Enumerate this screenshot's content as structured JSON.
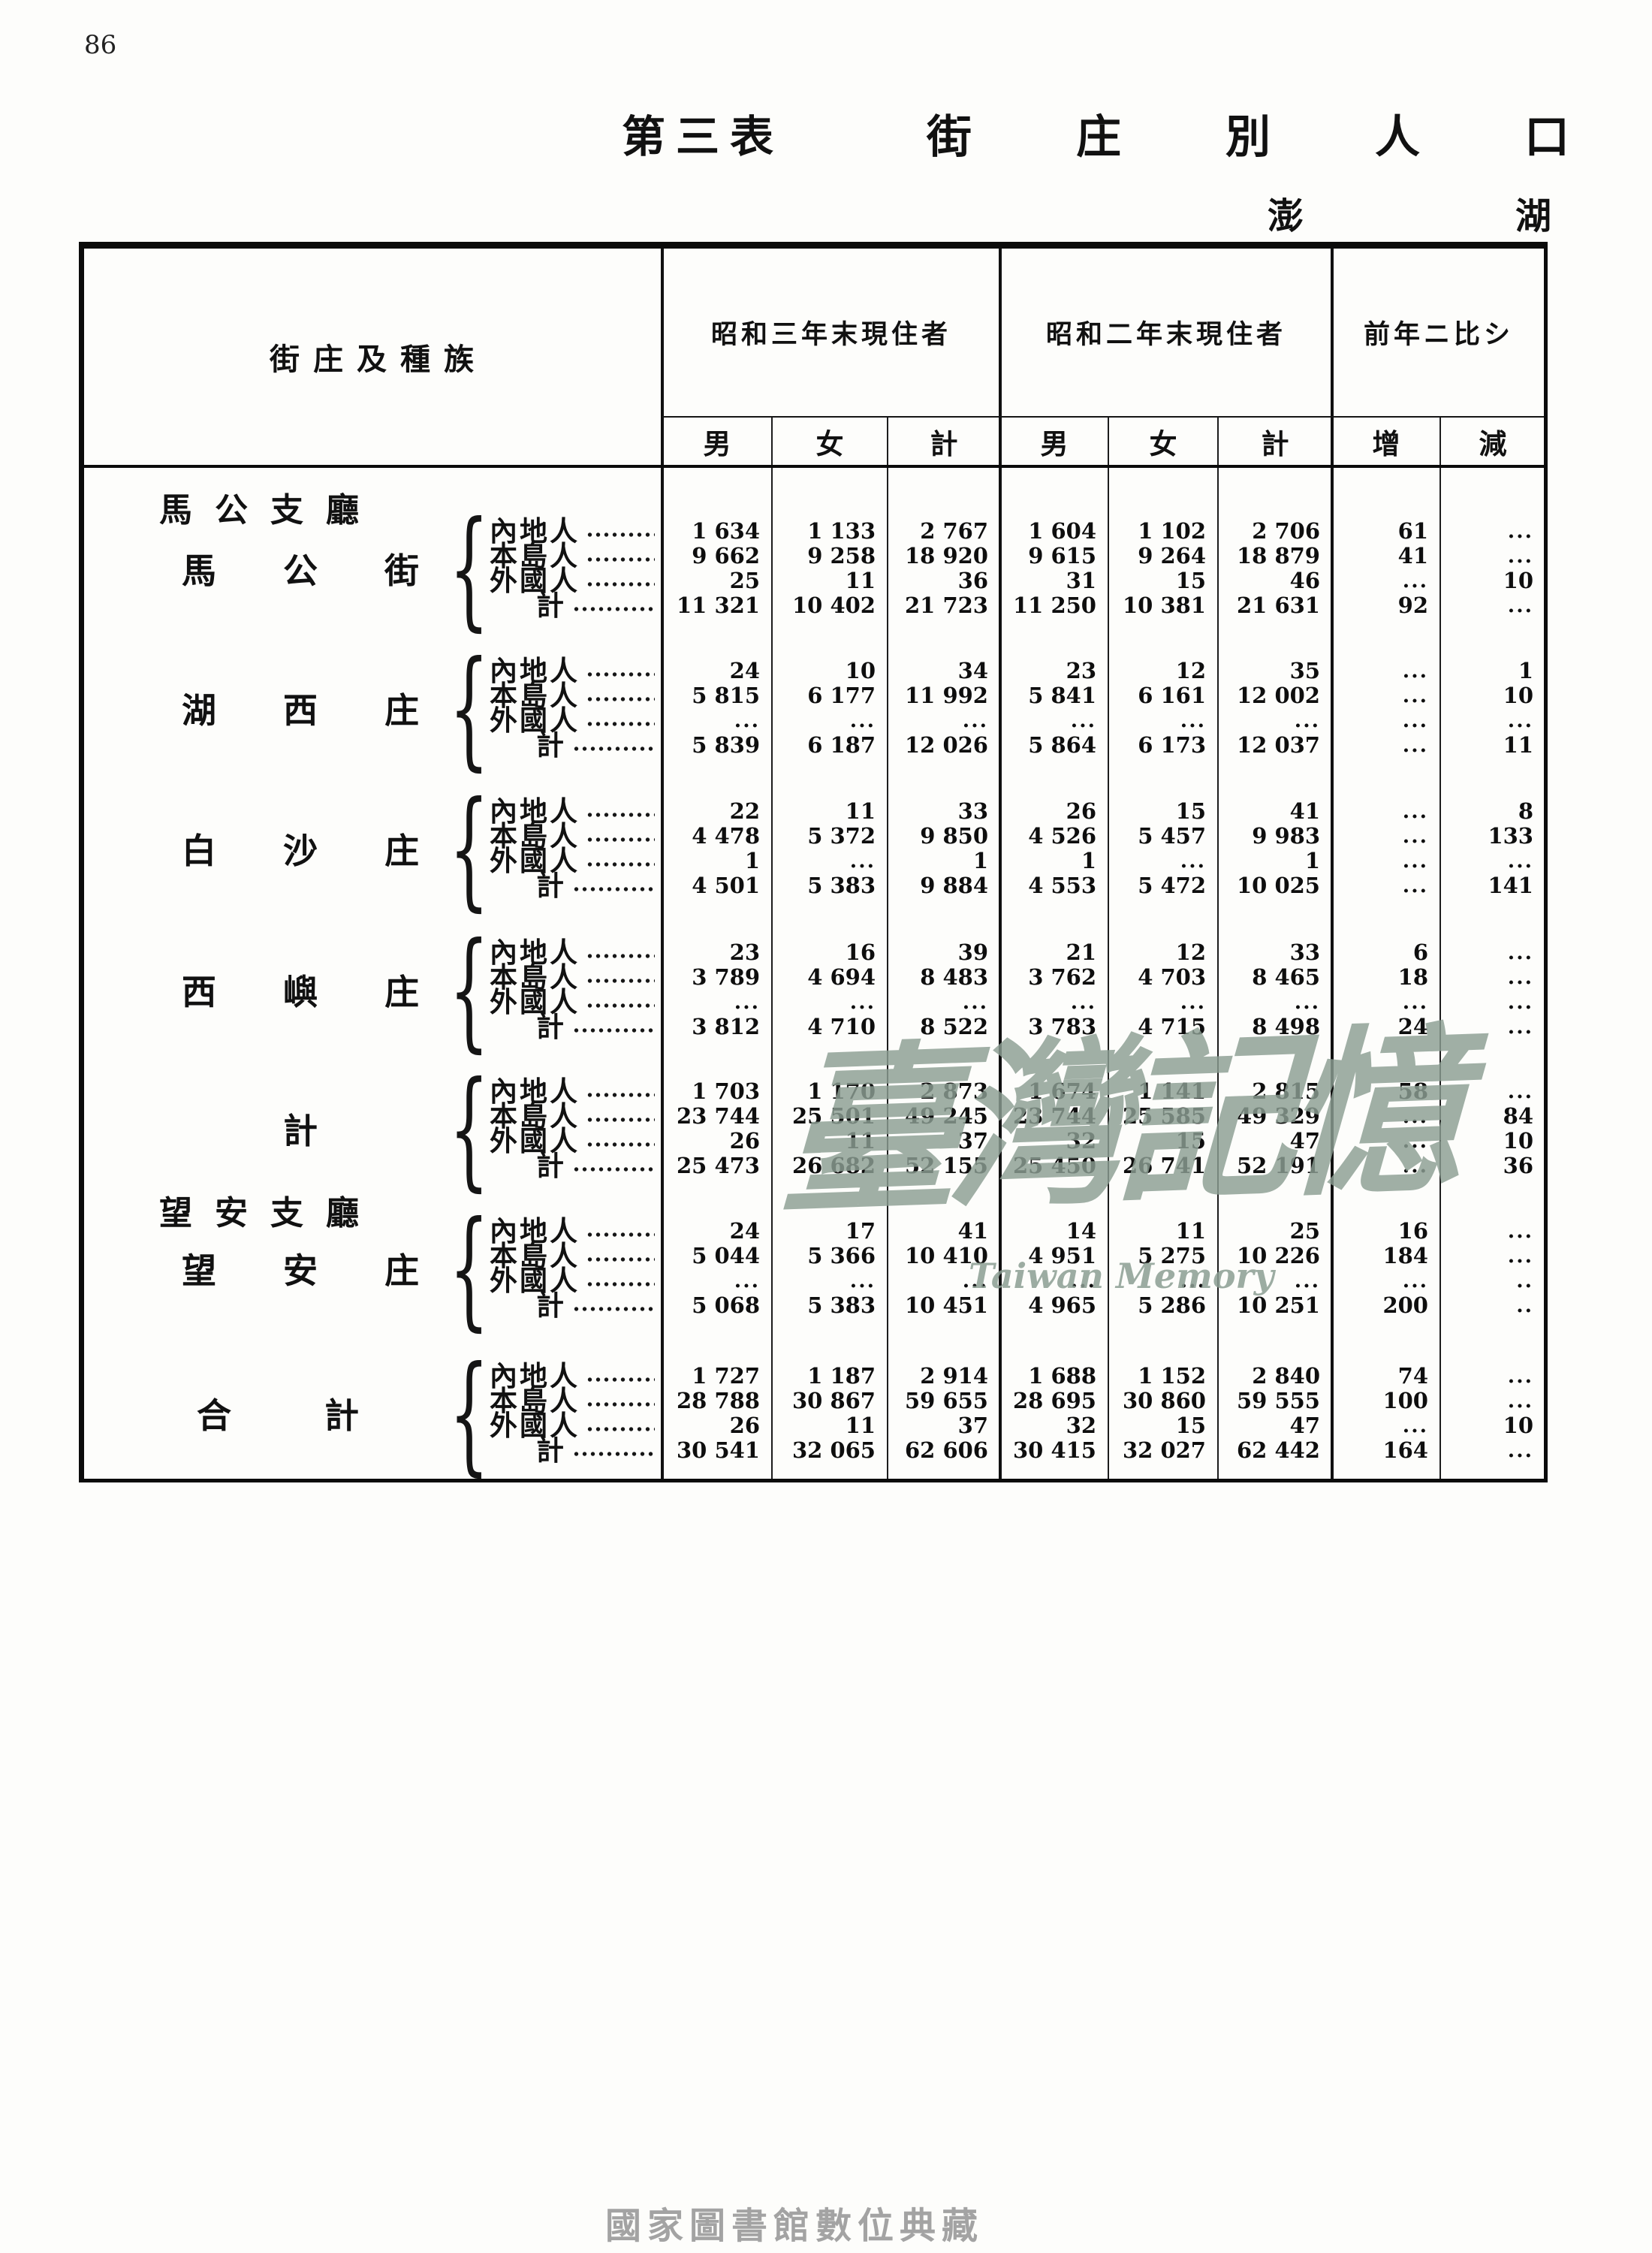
{
  "page": {
    "number": "86",
    "footer_caption": "國家圖書館數位典藏"
  },
  "title": {
    "table_no": "第三表",
    "chars": [
      "街",
      "庄",
      "別",
      "人",
      "口"
    ],
    "prefecture_chars": [
      "澎",
      "湖"
    ]
  },
  "watermark": {
    "cjk_chars": "臺灣記憶",
    "latin": "Taiwan Memory",
    "color": "#8c9e93"
  },
  "table": {
    "stub_header": "街庄及種族",
    "col_groups": [
      {
        "label": "昭和三年末現住者",
        "cols": [
          "男",
          "女",
          "計"
        ]
      },
      {
        "label": "昭和二年末現住者",
        "cols": [
          "男",
          "女",
          "計"
        ]
      },
      {
        "label": "前年ニ比シ",
        "cols": [
          "增",
          "減"
        ]
      }
    ],
    "sections": [
      {
        "type": "region",
        "label": "馬公支廳"
      },
      {
        "type": "group",
        "name": "馬公街",
        "rows": [
          {
            "race": "內地人",
            "values": [
              "1 634",
              "1 133",
              "2 767",
              "1 604",
              "1 102",
              "2 706",
              "61",
              "..."
            ]
          },
          {
            "race": "本島人",
            "values": [
              "9 662",
              "9 258",
              "18 920",
              "9 615",
              "9 264",
              "18 879",
              "41",
              "..."
            ]
          },
          {
            "race": "外國人",
            "values": [
              "25",
              "11",
              "36",
              "31",
              "15",
              "46",
              "...",
              "10"
            ]
          },
          {
            "race": "計",
            "values": [
              "11 321",
              "10 402",
              "21 723",
              "11 250",
              "10 381",
              "21 631",
              "92",
              "..."
            ]
          }
        ]
      },
      {
        "type": "group",
        "name": "湖西庄",
        "rows": [
          {
            "race": "內地人",
            "values": [
              "24",
              "10",
              "34",
              "23",
              "12",
              "35",
              "...",
              "1"
            ]
          },
          {
            "race": "本島人",
            "values": [
              "5 815",
              "6 177",
              "11 992",
              "5 841",
              "6 161",
              "12 002",
              "...",
              "10"
            ]
          },
          {
            "race": "外國人",
            "values": [
              "...",
              "...",
              "...",
              "...",
              "...",
              "...",
              "...",
              "..."
            ]
          },
          {
            "race": "計",
            "values": [
              "5 839",
              "6 187",
              "12 026",
              "5 864",
              "6 173",
              "12 037",
              "...",
              "11"
            ]
          }
        ]
      },
      {
        "type": "group",
        "name": "白沙庄",
        "rows": [
          {
            "race": "內地人",
            "values": [
              "22",
              "11",
              "33",
              "26",
              "15",
              "41",
              "...",
              "8"
            ]
          },
          {
            "race": "本島人",
            "values": [
              "4 478",
              "5 372",
              "9 850",
              "4 526",
              "5 457",
              "9 983",
              "...",
              "133"
            ]
          },
          {
            "race": "外國人",
            "values": [
              "1",
              "...",
              "1",
              "1",
              "...",
              "1",
              "...",
              "..."
            ]
          },
          {
            "race": "計",
            "values": [
              "4 501",
              "5 383",
              "9 884",
              "4 553",
              "5 472",
              "10 025",
              "...",
              "141"
            ]
          }
        ]
      },
      {
        "type": "group",
        "name": "西嶼庄",
        "rows": [
          {
            "race": "內地人",
            "values": [
              "23",
              "16",
              "39",
              "21",
              "12",
              "33",
              "6",
              "..."
            ]
          },
          {
            "race": "本島人",
            "values": [
              "3 789",
              "4 694",
              "8 483",
              "3 762",
              "4 703",
              "8 465",
              "18",
              "..."
            ]
          },
          {
            "race": "外國人",
            "values": [
              "...",
              "...",
              "...",
              "...",
              "...",
              "...",
              "...",
              "..."
            ]
          },
          {
            "race": "計",
            "values": [
              "3 812",
              "4 710",
              "8 522",
              "3 783",
              "4 715",
              "8 498",
              "24",
              "..."
            ]
          }
        ]
      },
      {
        "type": "group",
        "name": "計",
        "rows": [
          {
            "race": "內地人",
            "values": [
              "1 703",
              "1 170",
              "2 873",
              "1 674",
              "1 141",
              "2 815",
              "58",
              "..."
            ]
          },
          {
            "race": "本島人",
            "values": [
              "23 744",
              "25 501",
              "49 245",
              "23 744",
              "25 585",
              "49 329",
              "...",
              "84"
            ]
          },
          {
            "race": "外國人",
            "values": [
              "26",
              "11",
              "37",
              "32",
              "15",
              "47",
              "...",
              "10"
            ]
          },
          {
            "race": "計",
            "values": [
              "25 473",
              "26 682",
              "52 155",
              "25 450",
              "26 741",
              "52 191",
              "...",
              "36"
            ]
          }
        ]
      },
      {
        "type": "region",
        "label": "望安支廳"
      },
      {
        "type": "group",
        "name": "望安庄",
        "rows": [
          {
            "race": "內地人",
            "values": [
              "24",
              "17",
              "41",
              "14",
              "11",
              "25",
              "16",
              "..."
            ]
          },
          {
            "race": "本島人",
            "values": [
              "5 044",
              "5 366",
              "10 410",
              "4 951",
              "5 275",
              "10 226",
              "184",
              "..."
            ]
          },
          {
            "race": "外國人",
            "values": [
              "...",
              "...",
              "...",
              "...",
              "...",
              "...",
              "...",
              ".."
            ]
          },
          {
            "race": "計",
            "values": [
              "5 068",
              "5 383",
              "10 451",
              "4 965",
              "5 286",
              "10 251",
              "200",
              ".."
            ]
          }
        ]
      },
      {
        "type": "group",
        "name": "合計",
        "rows": [
          {
            "race": "內地人",
            "values": [
              "1 727",
              "1 187",
              "2 914",
              "1 688",
              "1 152",
              "2 840",
              "74",
              "..."
            ]
          },
          {
            "race": "本島人",
            "values": [
              "28 788",
              "30 867",
              "59 655",
              "28 695",
              "30 860",
              "59 555",
              "100",
              "..."
            ]
          },
          {
            "race": "外國人",
            "values": [
              "26",
              "11",
              "37",
              "32",
              "15",
              "47",
              "...",
              "10"
            ]
          },
          {
            "race": "計",
            "values": [
              "30 541",
              "32 065",
              "62 606",
              "30 415",
              "32 027",
              "62 442",
              "164",
              "..."
            ]
          }
        ]
      }
    ]
  }
}
